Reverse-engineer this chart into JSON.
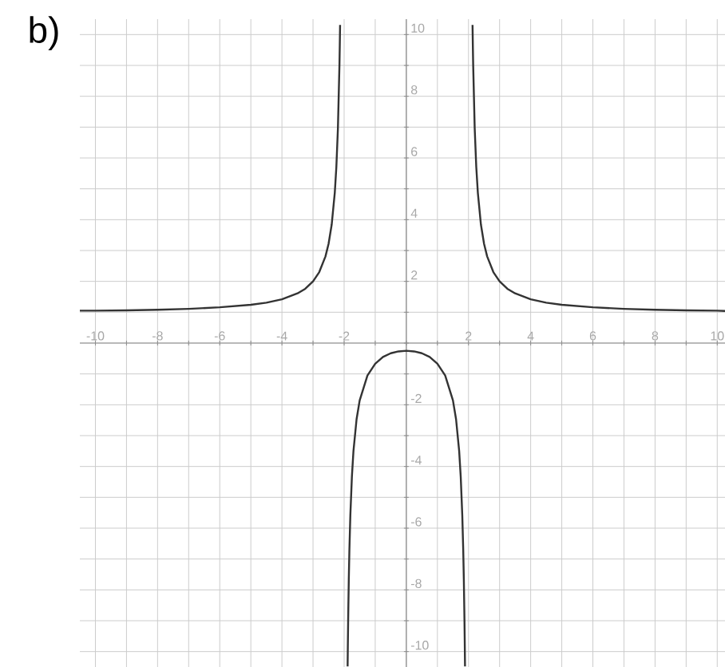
{
  "chart_data": {
    "type": "line",
    "title": "b)",
    "xlim": [
      -10.5,
      10.25
    ],
    "ylim": [
      -10.5,
      10.5
    ],
    "xticks": [
      -10,
      {
        "value": -9,
        "label": null
      },
      -8,
      {
        "value": -7,
        "label": null
      },
      -6,
      {
        "value": -5,
        "label": null
      },
      -4,
      {
        "value": -3,
        "label": null
      },
      -2,
      {
        "value": -1,
        "label": null
      },
      {
        "value": 0,
        "label": null
      },
      {
        "value": 1,
        "label": null
      },
      2,
      {
        "value": 3,
        "label": null
      },
      4,
      {
        "value": 5,
        "label": null
      },
      6,
      {
        "value": 7,
        "label": null
      },
      8,
      {
        "value": 9,
        "label": null
      },
      10
    ],
    "yticks": [
      -10,
      {
        "value": -9,
        "label": null
      },
      -8,
      {
        "value": -7,
        "label": null
      },
      -6,
      {
        "value": -5,
        "label": null
      },
      -4,
      {
        "value": -3,
        "label": null
      },
      -2,
      {
        "value": -1,
        "label": null
      },
      {
        "value": 0,
        "label": null
      },
      {
        "value": 1,
        "label": null
      },
      2,
      {
        "value": 3,
        "label": null
      },
      4,
      {
        "value": 5,
        "label": null
      },
      6,
      {
        "value": 7,
        "label": null
      },
      8,
      {
        "value": 9,
        "label": null
      },
      10
    ],
    "grid": true,
    "marker": "none",
    "line_style": "solid",
    "series": [
      {
        "color": "#333333",
        "x": [
          -10.5,
          -10,
          -9,
          -8,
          -7,
          -6,
          -5,
          -4.5,
          -4,
          -3.5,
          -3.25,
          -3,
          -2.8,
          -2.6,
          -2.5,
          -2.4,
          -2.3,
          -2.25,
          -2.2,
          -2.15,
          -2.14,
          -2.13
        ],
        "values": [
          1.05,
          1.05,
          1.06,
          1.08,
          1.11,
          1.16,
          1.24,
          1.31,
          1.42,
          1.61,
          1.76,
          2.0,
          2.3,
          2.81,
          3.22,
          3.84,
          4.88,
          5.71,
          6.95,
          9.03,
          9.63,
          10.31
        ]
      },
      {
        "color": "#333333",
        "x": [
          -1.888,
          -1.88,
          -1.87,
          -1.85,
          -1.83,
          -1.8,
          -1.75,
          -1.7,
          -1.6,
          -1.5,
          -1.25,
          -1,
          -0.75,
          -0.5,
          -0.25,
          0,
          0.25,
          0.5,
          0.75,
          1,
          1.25,
          1.5,
          1.6,
          1.7,
          1.75,
          1.8,
          1.83,
          1.85,
          1.87,
          1.88,
          1.888
        ],
        "values": [
          -10.48,
          -9.74,
          -8.94,
          -7.66,
          -6.68,
          -5.58,
          -4.33,
          -3.5,
          -2.47,
          -1.86,
          -1.05,
          -0.67,
          -0.45,
          -0.33,
          -0.27,
          -0.25,
          -0.27,
          -0.33,
          -0.45,
          -0.67,
          -1.05,
          -1.86,
          -2.47,
          -3.5,
          -4.33,
          -5.58,
          -6.68,
          -7.66,
          -8.94,
          -9.74,
          -10.48
        ]
      },
      {
        "color": "#333333",
        "x": [
          2.13,
          2.14,
          2.15,
          2.2,
          2.25,
          2.3,
          2.4,
          2.5,
          2.6,
          2.8,
          3,
          3.25,
          3.5,
          4,
          4.5,
          5,
          6,
          7,
          8,
          9,
          10,
          10.25
        ],
        "values": [
          10.31,
          9.63,
          9.03,
          6.95,
          5.71,
          4.88,
          3.84,
          3.22,
          2.81,
          2.3,
          2.0,
          1.76,
          1.61,
          1.42,
          1.31,
          1.24,
          1.16,
          1.11,
          1.08,
          1.06,
          1.05,
          1.04
        ]
      }
    ]
  }
}
